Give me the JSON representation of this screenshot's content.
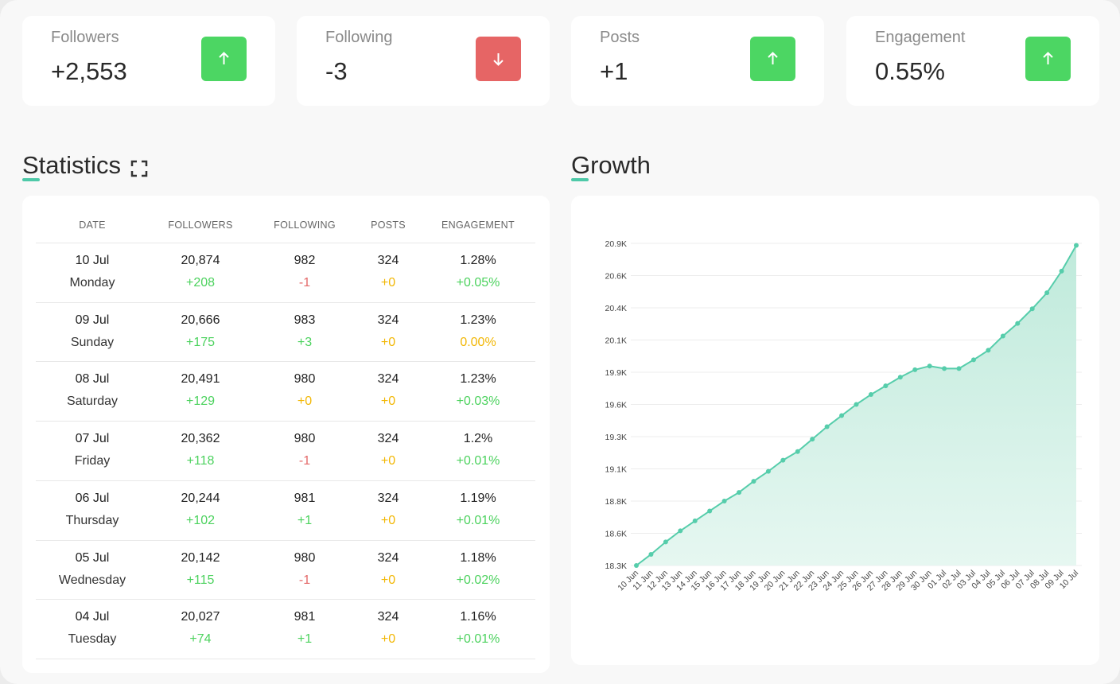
{
  "cards": [
    {
      "label": "Followers",
      "value": "+2,553"
    },
    {
      "label": "Following",
      "value": "-3"
    },
    {
      "label": "Posts",
      "value": "+1"
    },
    {
      "label": "Engagement",
      "value": "0.55%"
    }
  ],
  "sections": {
    "statistics": "Statistics",
    "growth": "Growth"
  },
  "table": {
    "columns": [
      "DATE",
      "FOLLOWERS",
      "FOLLOWING",
      "POSTS",
      "ENGAGEMENT"
    ],
    "rows": [
      {
        "date": "10 Jul",
        "day": "Monday",
        "followers": "20,874",
        "followers_change": "+208",
        "following": "982",
        "following_change": "-1",
        "posts": "324",
        "posts_change": "+0",
        "engagement": "1.28%",
        "engagement_change": "+0.05%"
      },
      {
        "date": "09 Jul",
        "day": "Sunday",
        "followers": "20,666",
        "followers_change": "+175",
        "following": "983",
        "following_change": "+3",
        "posts": "324",
        "posts_change": "+0",
        "engagement": "1.23%",
        "engagement_change": "0.00%"
      },
      {
        "date": "08 Jul",
        "day": "Saturday",
        "followers": "20,491",
        "followers_change": "+129",
        "following": "980",
        "following_change": "+0",
        "posts": "324",
        "posts_change": "+0",
        "engagement": "1.23%",
        "engagement_change": "+0.03%"
      },
      {
        "date": "07 Jul",
        "day": "Friday",
        "followers": "20,362",
        "followers_change": "+118",
        "following": "980",
        "following_change": "-1",
        "posts": "324",
        "posts_change": "+0",
        "engagement": "1.2%",
        "engagement_change": "+0.01%"
      },
      {
        "date": "06 Jul",
        "day": "Thursday",
        "followers": "20,244",
        "followers_change": "+102",
        "following": "981",
        "following_change": "+1",
        "posts": "324",
        "posts_change": "+0",
        "engagement": "1.19%",
        "engagement_change": "+0.01%"
      },
      {
        "date": "05 Jul",
        "day": "Wednesday",
        "followers": "20,142",
        "followers_change": "+115",
        "following": "980",
        "following_change": "-1",
        "posts": "324",
        "posts_change": "+0",
        "engagement": "1.18%",
        "engagement_change": "+0.02%"
      },
      {
        "date": "04 Jul",
        "day": "Tuesday",
        "followers": "20,027",
        "followers_change": "+74",
        "following": "981",
        "following_change": "+1",
        "posts": "324",
        "posts_change": "+0",
        "engagement": "1.16%",
        "engagement_change": "+0.01%"
      }
    ]
  },
  "chart_data": {
    "type": "area",
    "color": "#56cdab",
    "grid": true,
    "categories": [
      "10 Jun",
      "11 Jun",
      "12 Jun",
      "13 Jun",
      "14 Jun",
      "15 Jun",
      "16 Jun",
      "17 Jun",
      "18 Jun",
      "19 Jun",
      "20 Jun",
      "21 Jun",
      "22 Jun",
      "23 Jun",
      "24 Jun",
      "25 Jun",
      "26 Jun",
      "27 Jun",
      "28 Jun",
      "29 Jun",
      "30 Jun",
      "01 Jul",
      "02 Jul",
      "03 Jul",
      "04 Jul",
      "05 Jul",
      "06 Jul",
      "07 Jul",
      "08 Jul",
      "09 Jul",
      "10 Jul"
    ],
    "values": [
      18290,
      18380,
      18480,
      18570,
      18650,
      18730,
      18810,
      18880,
      18970,
      19050,
      19140,
      19210,
      19310,
      19410,
      19500,
      19590,
      19670,
      19740,
      19810,
      19870,
      19900,
      19880,
      19880,
      19950,
      20027,
      20142,
      20244,
      20362,
      20491,
      20666,
      20874
    ],
    "ylim": [
      18290,
      20890
    ],
    "yticks": [
      {
        "value": 18290,
        "label": "18.3K"
      },
      {
        "value": 18550,
        "label": "18.6K"
      },
      {
        "value": 18810,
        "label": "18.8K"
      },
      {
        "value": 19070,
        "label": "19.1K"
      },
      {
        "value": 19330,
        "label": "19.3K"
      },
      {
        "value": 19590,
        "label": "19.6K"
      },
      {
        "value": 19850,
        "label": "19.9K"
      },
      {
        "value": 20110,
        "label": "20.1K"
      },
      {
        "value": 20370,
        "label": "20.4K"
      },
      {
        "value": 20630,
        "label": "20.6K"
      },
      {
        "value": 20890,
        "label": "20.9K"
      }
    ]
  }
}
